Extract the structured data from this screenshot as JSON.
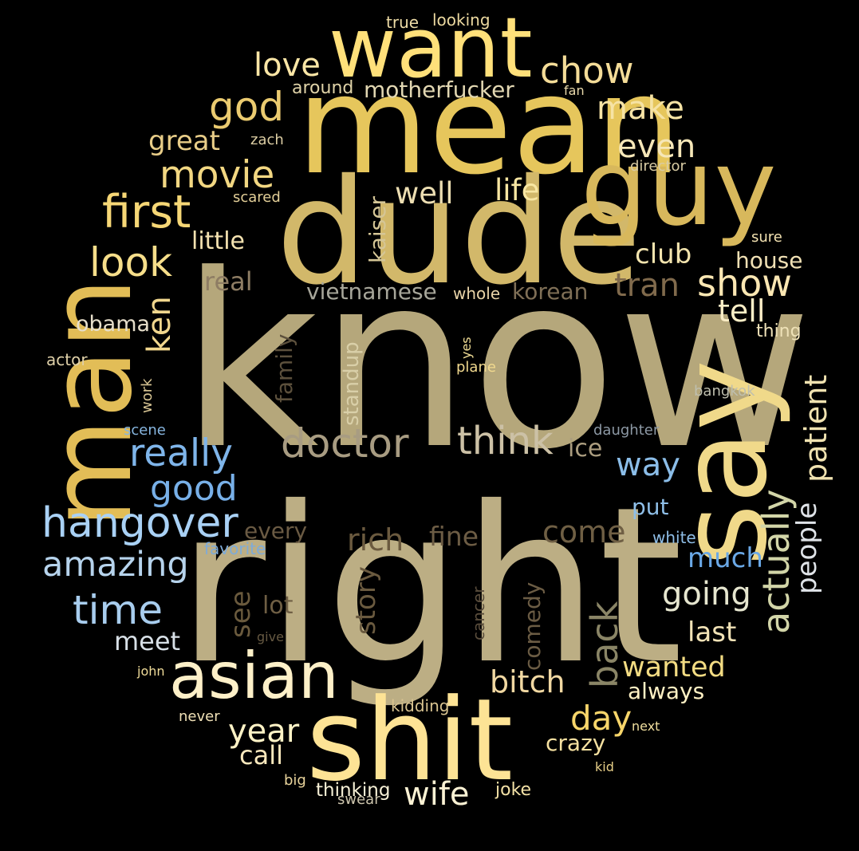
{
  "words": [
    {
      "text": "know",
      "color": "#b5a77b"
    },
    {
      "text": "right",
      "color": "#bcae84"
    },
    {
      "text": "mean",
      "color": "#e6c65c"
    },
    {
      "text": "dude",
      "color": "#d2b86a"
    },
    {
      "text": "guy",
      "color": "#d8b85c"
    },
    {
      "text": "man",
      "color": "#e2bd57"
    },
    {
      "text": "say",
      "color": "#f0d98a"
    },
    {
      "text": "shit",
      "color": "#fde395"
    },
    {
      "text": "want",
      "color": "#ffe07a"
    },
    {
      "text": "asian",
      "color": "#fdf0c8"
    },
    {
      "text": "first",
      "color": "#f6d776"
    },
    {
      "text": "hangover",
      "color": "#a9d1f5"
    },
    {
      "text": "doctor",
      "color": "#a89c82"
    },
    {
      "text": "think",
      "color": "#ccc1a6"
    },
    {
      "text": "chow",
      "color": "#f4dc98"
    },
    {
      "text": "god",
      "color": "#ebcb70"
    },
    {
      "text": "movie",
      "color": "#f2d782"
    },
    {
      "text": "look",
      "color": "#f6de8a"
    },
    {
      "text": "really",
      "color": "#7fb5ea"
    },
    {
      "text": "good",
      "color": "#78b0e8"
    },
    {
      "text": "amazing",
      "color": "#b6d3ec"
    },
    {
      "text": "time",
      "color": "#a8cdee"
    },
    {
      "text": "show",
      "color": "#fbe7b3"
    },
    {
      "text": "actually",
      "color": "#d2d5a8"
    },
    {
      "text": "patient",
      "color": "#f0e2b0"
    },
    {
      "text": "people",
      "color": "#dfe3e8"
    },
    {
      "text": "back",
      "color": "#8a8566"
    },
    {
      "text": "going",
      "color": "#e6e6cf"
    },
    {
      "text": "wanted",
      "color": "#f3dc83"
    },
    {
      "text": "bitch",
      "color": "#f1d8a2"
    },
    {
      "text": "day",
      "color": "#f7d56a"
    },
    {
      "text": "year",
      "color": "#fff3c6"
    },
    {
      "text": "wife",
      "color": "#fbf2d4"
    },
    {
      "text": "love",
      "color": "#fbe6a6"
    },
    {
      "text": "make",
      "color": "#f6e3a5"
    },
    {
      "text": "even",
      "color": "#f6e7b8"
    },
    {
      "text": "well",
      "color": "#ecdeb2"
    },
    {
      "text": "life",
      "color": "#f8e6a2"
    },
    {
      "text": "club",
      "color": "#f3e4ae"
    },
    {
      "text": "house",
      "color": "#f0e0b4"
    },
    {
      "text": "tell",
      "color": "#fbeec6"
    },
    {
      "text": "tran",
      "color": "#806a4c"
    },
    {
      "text": "great",
      "color": "#e8cd88"
    },
    {
      "text": "ken",
      "color": "#f1d78e"
    },
    {
      "text": "obama",
      "color": "#e6deca"
    },
    {
      "text": "real",
      "color": "#8e7d64"
    },
    {
      "text": "little",
      "color": "#f4e2b0"
    },
    {
      "text": "motherfucker",
      "color": "#e2d7b2"
    },
    {
      "text": "around",
      "color": "#e0d3a8"
    },
    {
      "text": "vietnamese",
      "color": "#a7a69a"
    },
    {
      "text": "korean",
      "color": "#7f6f56"
    },
    {
      "text": "whole",
      "color": "#e9d4a8"
    },
    {
      "text": "kaiser",
      "color": "#d5c696"
    },
    {
      "text": "come",
      "color": "#6f5f44"
    },
    {
      "text": "rich",
      "color": "#6b5a3f"
    },
    {
      "text": "fine",
      "color": "#6c5c44"
    },
    {
      "text": "every",
      "color": "#6a5a43"
    },
    {
      "text": "much",
      "color": "#6aa8e6"
    },
    {
      "text": "way",
      "color": "#8bbde8"
    },
    {
      "text": "put",
      "color": "#8fbfe8"
    },
    {
      "text": "white",
      "color": "#8ebde6"
    },
    {
      "text": "favorite",
      "color": "#7eabd8"
    },
    {
      "text": "last",
      "color": "#f1e2b6"
    },
    {
      "text": "meet",
      "color": "#d7dfe6"
    },
    {
      "text": "lot",
      "color": "#6f5f44"
    },
    {
      "text": "see",
      "color": "#6a5a3d"
    },
    {
      "text": "story",
      "color": "#6a5a3f"
    },
    {
      "text": "comedy",
      "color": "#6b5c44"
    },
    {
      "text": "cancer",
      "color": "#5a4d3c"
    },
    {
      "text": "always",
      "color": "#fff1c4"
    },
    {
      "text": "crazy",
      "color": "#f5e0a0"
    },
    {
      "text": "call",
      "color": "#fbe9bd"
    },
    {
      "text": "joke",
      "color": "#f3e1a6"
    },
    {
      "text": "kidding",
      "color": "#d8c390"
    },
    {
      "text": "thinking",
      "color": "#f6f0d6"
    },
    {
      "text": "swear",
      "color": "#cdc5ad"
    },
    {
      "text": "big",
      "color": "#e9d49c"
    },
    {
      "text": "never",
      "color": "#efe0b6"
    },
    {
      "text": "next",
      "color": "#f1df9f"
    },
    {
      "text": "kid",
      "color": "#e7cf88"
    },
    {
      "text": "john",
      "color": "#f0dc9a"
    },
    {
      "text": "give",
      "color": "#665942"
    },
    {
      "text": "ice",
      "color": "#ab9d7f"
    },
    {
      "text": "daughter",
      "color": "#8d99a5"
    },
    {
      "text": "bangkok",
      "color": "#bfbfae"
    },
    {
      "text": "scene",
      "color": "#87b6e0"
    },
    {
      "text": "work",
      "color": "#d8c594"
    },
    {
      "text": "actor",
      "color": "#dfd0a8"
    },
    {
      "text": "family",
      "color": "#5c503c"
    },
    {
      "text": "standup",
      "color": "#d9cfa8"
    },
    {
      "text": "plane",
      "color": "#f1d98e"
    },
    {
      "text": "yes",
      "color": "#f3df97"
    },
    {
      "text": "thing",
      "color": "#efe2b8"
    },
    {
      "text": "sure",
      "color": "#f3e2b1"
    },
    {
      "text": "director",
      "color": "#d9cca4"
    },
    {
      "text": "scared",
      "color": "#e3cf98"
    },
    {
      "text": "zach",
      "color": "#dccda3"
    },
    {
      "text": "fan",
      "color": "#e9d9ab"
    },
    {
      "text": "true",
      "color": "#eedca6"
    },
    {
      "text": "looking",
      "color": "#ecd9a0"
    }
  ]
}
